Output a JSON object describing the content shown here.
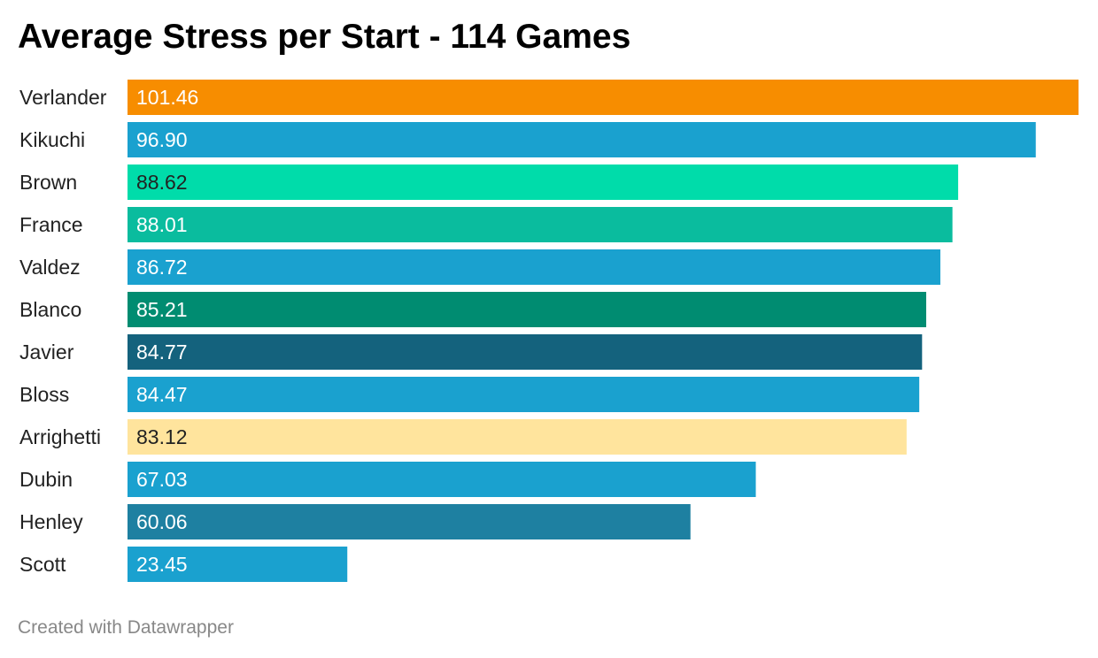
{
  "chart_data": {
    "type": "bar",
    "orientation": "horizontal",
    "title": "Average Stress per Start - 114 Games",
    "categories": [
      "Verlander",
      "Kikuchi",
      "Brown",
      "France",
      "Valdez",
      "Blanco",
      "Javier",
      "Bloss",
      "Arrighetti",
      "Dubin",
      "Henley",
      "Scott"
    ],
    "values": [
      101.46,
      96.9,
      88.62,
      88.01,
      86.72,
      85.21,
      84.77,
      84.47,
      83.12,
      67.03,
      60.06,
      23.45
    ],
    "value_labels": [
      "101.46",
      "96.90",
      "88.62",
      "88.01",
      "86.72",
      "85.21",
      "84.77",
      "84.47",
      "83.12",
      "67.03",
      "60.06",
      "23.45"
    ],
    "colors": [
      "#f78d00",
      "#1aa1cf",
      "#00dcaa",
      "#0abc9e",
      "#1aa1cf",
      "#008c71",
      "#14627d",
      "#1aa1cf",
      "#ffe49d",
      "#1aa1cf",
      "#1e80a1",
      "#1aa1cf"
    ],
    "label_colors": [
      "#ffffff",
      "#ffffff",
      "#222222",
      "#ffffff",
      "#ffffff",
      "#ffffff",
      "#ffffff",
      "#ffffff",
      "#222222",
      "#ffffff",
      "#ffffff",
      "#ffffff"
    ],
    "xlim": [
      0,
      101.46
    ],
    "xlabel": "",
    "ylabel": "",
    "grid": false,
    "legend": "none"
  },
  "footer": {
    "credit": "Created with Datawrapper"
  }
}
